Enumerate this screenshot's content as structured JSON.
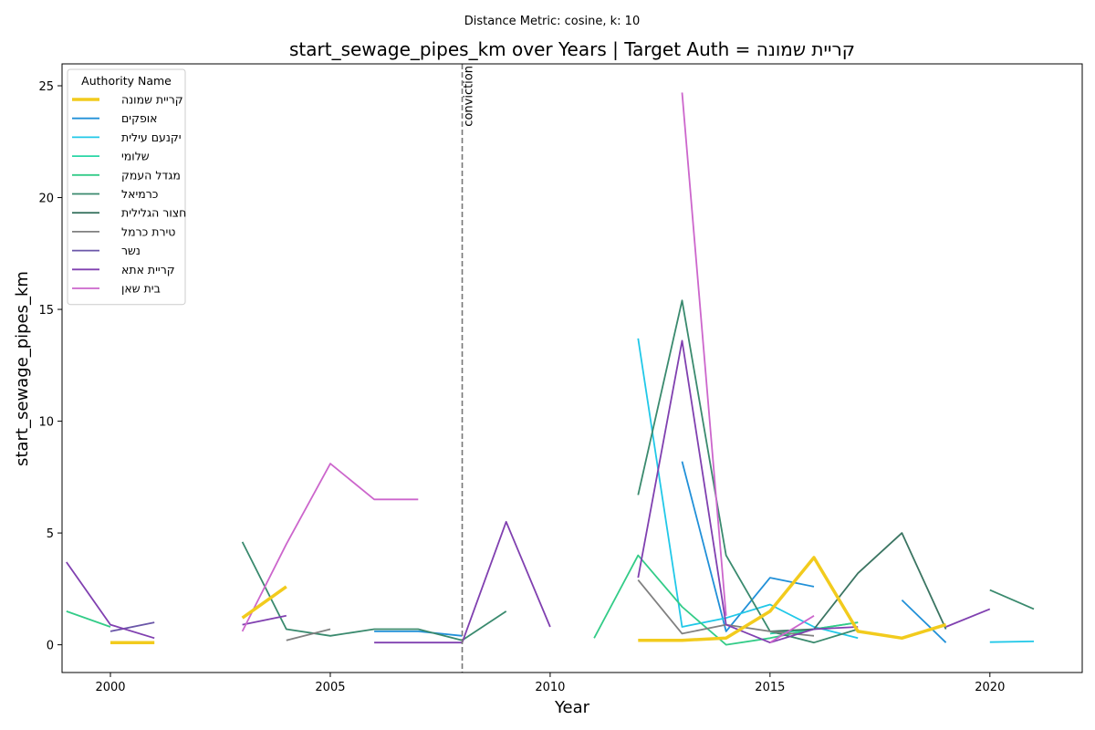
{
  "chart_data": {
    "type": "line",
    "suptitle": "Distance Metric: cosine, k: 10",
    "title": "start_sewage_pipes_km over Years | Target Auth = קריית שמונה",
    "xlabel": "Year",
    "ylabel": "start_sewage_pipes_km",
    "xlim": [
      1998.9,
      2022.1
    ],
    "ylim": [
      -1.24,
      25.98
    ],
    "xticks": [
      2000,
      2005,
      2010,
      2015,
      2020
    ],
    "yticks": [
      0,
      5,
      10,
      15,
      20,
      25
    ],
    "grid": false,
    "legend_title": "Authority Name",
    "legend_position": "top-left",
    "annotation": {
      "x": 2008,
      "label": "conviction",
      "style": "dashed",
      "color": "#777777"
    },
    "series": [
      {
        "name": "קריית שמונה",
        "color": "#f2cb1d",
        "width": 3.5,
        "segments": [
          [
            [
              2000,
              0.1
            ],
            [
              2001,
              0.1
            ]
          ],
          [
            [
              2003,
              1.2
            ],
            [
              2004,
              2.6
            ]
          ],
          [
            [
              2012,
              0.2
            ],
            [
              2013,
              0.2
            ],
            [
              2014,
              0.3
            ],
            [
              2015,
              1.5
            ],
            [
              2016,
              3.9
            ],
            [
              2017,
              0.6
            ],
            [
              2018,
              0.3
            ],
            [
              2019,
              0.9
            ]
          ]
        ]
      },
      {
        "name": "אופקים",
        "color": "#2190d8",
        "width": 1.8,
        "segments": [
          [
            [
              2006,
              0.6
            ],
            [
              2007,
              0.6
            ],
            [
              2008,
              0.4
            ]
          ],
          [
            [
              2013,
              8.2
            ],
            [
              2014,
              0.6
            ],
            [
              2015,
              3.0
            ],
            [
              2016,
              2.6
            ]
          ],
          [
            [
              2018,
              2.0
            ],
            [
              2019,
              0.1
            ]
          ]
        ]
      },
      {
        "name": "יקנעם עילית",
        "color": "#21c8e8",
        "width": 1.8,
        "segments": [
          [
            [
              2012,
              13.7
            ],
            [
              2013,
              0.8
            ],
            [
              2014,
              1.2
            ],
            [
              2015,
              1.8
            ],
            [
              2016,
              0.8
            ],
            [
              2017,
              0.3
            ]
          ],
          [
            [
              2020,
              0.12
            ],
            [
              2021,
              0.15
            ]
          ]
        ]
      },
      {
        "name": "שלומי",
        "color": "#2ad6a6",
        "width": 1.8,
        "segments": [
          [
            [
              2015,
              0.5
            ],
            [
              2016,
              0.7
            ],
            [
              2017,
              1.0
            ]
          ]
        ]
      },
      {
        "name": "מגדל העמק",
        "color": "#33cc88",
        "width": 1.8,
        "segments": [
          [
            [
              1999,
              1.5
            ],
            [
              2000,
              0.8
            ]
          ],
          [
            [
              2011,
              0.3
            ],
            [
              2012,
              4.0
            ],
            [
              2013,
              1.7
            ],
            [
              2014,
              0.0
            ],
            [
              2015,
              0.3
            ],
            [
              2016,
              0.7
            ],
            [
              2017,
              1.0
            ]
          ]
        ]
      },
      {
        "name": "כרמיאל",
        "color": "#3a8a6e",
        "width": 1.8,
        "segments": [
          [
            [
              2003,
              4.6
            ],
            [
              2004,
              0.7
            ],
            [
              2005,
              0.4
            ],
            [
              2006,
              0.7
            ],
            [
              2007,
              0.7
            ],
            [
              2008,
              0.2
            ],
            [
              2009,
              1.5
            ]
          ],
          [
            [
              2012,
              6.7
            ],
            [
              2013,
              15.4
            ],
            [
              2014,
              4.0
            ],
            [
              2015,
              0.6
            ],
            [
              2016,
              0.1
            ],
            [
              2017,
              0.7
            ]
          ],
          [
            [
              2020,
              2.45
            ],
            [
              2021,
              1.6
            ]
          ]
        ]
      },
      {
        "name": "חצור הגלילית",
        "color": "#3b7562",
        "width": 1.8,
        "segments": [
          [
            [
              2015,
              0.6
            ],
            [
              2016,
              0.7
            ],
            [
              2017,
              3.2
            ],
            [
              2018,
              5.0
            ],
            [
              2019,
              0.7
            ]
          ]
        ]
      },
      {
        "name": "טירת כרמל",
        "color": "#808080",
        "width": 1.8,
        "segments": [
          [
            [
              2004,
              0.2
            ],
            [
              2005,
              0.7
            ]
          ],
          [
            [
              2012,
              2.9
            ],
            [
              2013,
              0.5
            ],
            [
              2014,
              0.9
            ],
            [
              2015,
              0.6
            ],
            [
              2016,
              0.4
            ]
          ]
        ]
      },
      {
        "name": "נשר",
        "color": "#6a56a8",
        "width": 1.8,
        "segments": [
          [
            [
              2000,
              0.6
            ],
            [
              2001,
              1.0
            ]
          ]
        ]
      },
      {
        "name": "קריית אתא",
        "color": "#8040b0",
        "width": 1.8,
        "segments": [
          [
            [
              1999,
              3.7
            ],
            [
              2000,
              0.9
            ],
            [
              2001,
              0.3
            ]
          ],
          [
            [
              2003,
              0.9
            ],
            [
              2004,
              1.3
            ]
          ],
          [
            [
              2006,
              0.1
            ],
            [
              2007,
              0.1
            ],
            [
              2008,
              0.1
            ],
            [
              2009,
              5.5
            ],
            [
              2010,
              0.8
            ]
          ],
          [
            [
              2012,
              3.0
            ],
            [
              2013,
              13.6
            ],
            [
              2014,
              0.9
            ],
            [
              2015,
              0.1
            ],
            [
              2016,
              0.7
            ],
            [
              2017,
              0.8
            ]
          ],
          [
            [
              2019,
              0.8
            ],
            [
              2020,
              1.6
            ]
          ]
        ]
      },
      {
        "name": "בית שאן",
        "color": "#cc66cc",
        "width": 1.8,
        "segments": [
          [
            [
              2003,
              0.6
            ],
            [
              2004,
              4.5
            ],
            [
              2005,
              8.1
            ],
            [
              2006,
              6.5
            ],
            [
              2007,
              6.5
            ]
          ],
          [
            [
              2013,
              24.7
            ],
            [
              2014,
              1.3
            ]
          ],
          [
            [
              2015,
              0.1
            ],
            [
              2016,
              1.3
            ]
          ]
        ]
      }
    ]
  }
}
